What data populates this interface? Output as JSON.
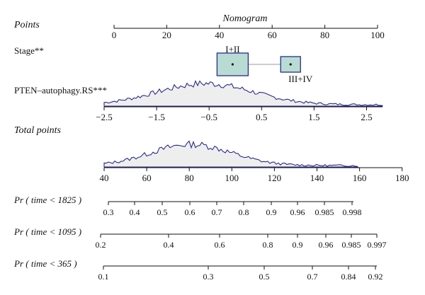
{
  "chart_data": {
    "type": "nomogram",
    "title": "Nomogram",
    "rows": {
      "points": {
        "label": "Points",
        "ticks": [
          0,
          20,
          40,
          60,
          80,
          100
        ]
      },
      "stage": {
        "label": "Stage**",
        "categories": [
          {
            "label": "I+II",
            "points": 45
          },
          {
            "label": "III+IV",
            "points": 67
          }
        ]
      },
      "rs": {
        "label": "PTEN–autophagy.RS***",
        "ticks": [
          "−2.5",
          "−1.5",
          "−0.5",
          "0.5",
          "1.5",
          "2.5"
        ]
      },
      "total": {
        "label": "Total points",
        "ticks": [
          40,
          60,
          80,
          100,
          120,
          140,
          160,
          180
        ]
      },
      "pr1825": {
        "label": "Pr ( time < 1825 )",
        "ticks": [
          "0.3",
          "0.4",
          "0.5",
          "0.6",
          "0.7",
          "0.8",
          "0.9",
          "0.96",
          "0.985",
          "0.998"
        ]
      },
      "pr1095": {
        "label": "Pr ( time < 1095 )",
        "ticks": [
          "0.2",
          "0.4",
          "0.6",
          "0.8",
          "0.9",
          "0.96",
          "0.985",
          "0.997"
        ]
      },
      "pr365": {
        "label": "Pr ( time < 365 )",
        "ticks": [
          "0.1",
          "0.3",
          "0.5",
          "0.7",
          "0.84",
          "0.92"
        ]
      }
    }
  }
}
